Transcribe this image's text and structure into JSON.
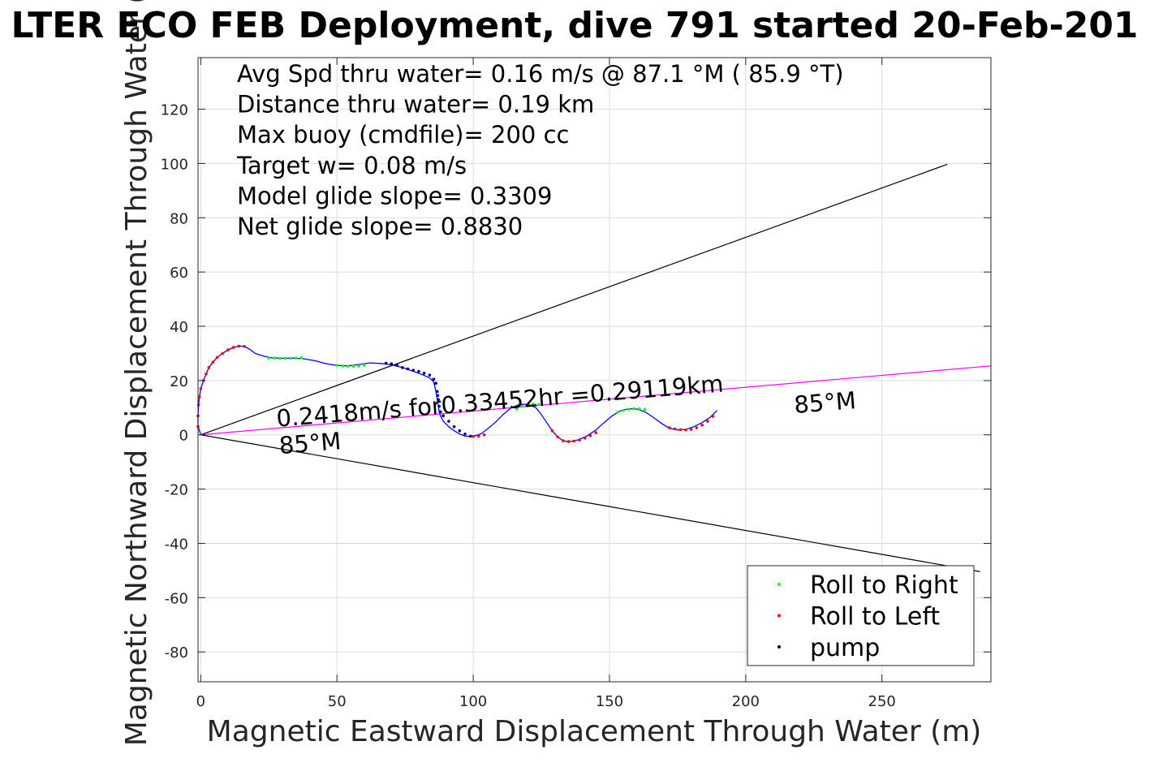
{
  "chart_data": {
    "type": "line",
    "title": "LTER ECO FEB Deployment, dive 791 started 20-Feb-201",
    "xlabel": "Magnetic Eastward Displacement Through Water (m)",
    "ylabel": "Magnetic Northward Displacement Through Water (",
    "xlim": [
      -1,
      290
    ],
    "ylim": [
      -91,
      139
    ],
    "xticks": [
      0,
      50,
      100,
      150,
      200,
      250
    ],
    "xtick_labels": [
      "0",
      "50",
      "100",
      "150",
      "200",
      "250"
    ],
    "yticks": [
      -80,
      -60,
      -40,
      -20,
      0,
      20,
      40,
      60,
      80,
      100,
      120
    ],
    "ytick_labels": [
      "-80",
      "-60",
      "-40",
      "-20",
      "0",
      "20",
      "40",
      "60",
      "80",
      "100",
      "120"
    ],
    "grid": true,
    "stats": [
      "Avg Spd thru water=  0.16 m/s @  87.1 °M ( 85.9 °T)",
      "Distance thru water=  0.19 km",
      "Max buoy (cmdfile)= 200 cc",
      "Target w= 0.08 m/s",
      "Model glide slope= 0.3309",
      "Net glide slope= 0.8830"
    ],
    "annotations": [
      {
        "text": "0.2418m/s for0.33452hr =0.29119km",
        "x": 28,
        "y": 3,
        "rotation_deg": -4.5
      },
      {
        "text": "85°M",
        "x": 29,
        "y": -7,
        "rotation_deg": -4.5
      },
      {
        "text": "85°M",
        "x": 218,
        "y": 8,
        "rotation_deg": -4.5
      }
    ],
    "legend": {
      "placement": "bottom-right",
      "entries": [
        {
          "label": "Roll to Right",
          "color": "#00ff00"
        },
        {
          "label": "Roll to Left",
          "color": "#ff0000"
        },
        {
          "label": "pump",
          "color": "#000000"
        }
      ]
    },
    "reference_lines": [
      {
        "name": "upper",
        "color": "#000000",
        "x": [
          0,
          274
        ],
        "y": [
          0,
          99.7
        ]
      },
      {
        "name": "lower",
        "color": "#000000",
        "x": [
          0,
          286
        ],
        "y": [
          0,
          -50.4
        ]
      },
      {
        "name": "heading",
        "color": "#ff00ff",
        "x": [
          0,
          290
        ],
        "y": [
          0,
          25.4
        ]
      }
    ],
    "series": [
      {
        "color": "#0000ff",
        "x": [
          0,
          -1,
          -1,
          -0.8,
          -0.5,
          0,
          1,
          2,
          3,
          4.5,
          6,
          8,
          10,
          12,
          14,
          16,
          18,
          20,
          23,
          26,
          30,
          34,
          38,
          42,
          46,
          50,
          54,
          58,
          62,
          66,
          70,
          74,
          78,
          81,
          84,
          85.5,
          86.3,
          86.8,
          87.2,
          87.5,
          88,
          89,
          91,
          93,
          95,
          97,
          99,
          101,
          103,
          105,
          108,
          111,
          114,
          117,
          120,
          123,
          125,
          127,
          129,
          131,
          133,
          135,
          137,
          139,
          142,
          145,
          148,
          151,
          154,
          157,
          160,
          163,
          166,
          169,
          172,
          175,
          178,
          181,
          184,
          187,
          189.5
        ],
        "y": [
          0,
          3,
          7,
          11,
          14,
          17,
          20,
          22.5,
          24.8,
          26.8,
          28.5,
          30,
          31.3,
          32.2,
          32.7,
          32.6,
          31.5,
          30,
          29,
          28.4,
          28.2,
          28.3,
          28,
          27.3,
          26.2,
          25.6,
          25.4,
          25.9,
          26.5,
          26.3,
          25.8,
          24.8,
          23.4,
          22.3,
          21,
          19.5,
          16,
          13,
          10.5,
          8.5,
          7,
          5,
          3,
          1.5,
          0.3,
          -0.5,
          -0.6,
          -0.3,
          0.5,
          2,
          4.5,
          7.5,
          10,
          11.2,
          11.3,
          10,
          7.5,
          4.5,
          1.5,
          -0.8,
          -2.2,
          -2.5,
          -2.3,
          -1.7,
          -0.3,
          1.8,
          4.5,
          7,
          8.8,
          9.6,
          9.5,
          8.5,
          6.5,
          4.3,
          2.4,
          1.8,
          2,
          3,
          4.5,
          6.5,
          9
        ]
      }
    ],
    "roll_right_points": {
      "x": [
        25,
        27,
        29,
        31,
        33,
        35,
        37,
        50,
        52,
        54,
        56,
        58,
        60,
        116,
        118,
        120,
        122,
        124,
        153,
        155,
        157,
        159,
        161,
        163
      ],
      "y": [
        28.3,
        28.3,
        28.2,
        28.2,
        28.2,
        28.3,
        28.4,
        25.6,
        25.4,
        25.3,
        25.3,
        25.4,
        25.7,
        9.5,
        10.5,
        11.2,
        11.4,
        11.2,
        8.3,
        9,
        9.4,
        9.6,
        9.6,
        9.4
      ]
    },
    "roll_left_points": {
      "x": [
        -1,
        -1,
        -0.8,
        -0.5,
        0,
        1,
        2,
        3,
        4.5,
        6,
        8,
        10,
        12,
        14,
        16,
        100,
        102,
        104,
        129,
        131,
        133,
        135,
        137,
        139,
        141,
        143,
        145,
        172,
        174,
        176,
        178,
        180,
        182,
        184,
        186,
        188
      ],
      "y": [
        3,
        7,
        11,
        14,
        17,
        20,
        22.5,
        24.8,
        26.8,
        28.5,
        30,
        31.3,
        32.2,
        32.7,
        32.6,
        -0.6,
        -0.5,
        0,
        1.5,
        -0.8,
        -2.2,
        -2.5,
        -2.3,
        -1.9,
        -1.2,
        -0.3,
        0.8,
        2.6,
        2.2,
        1.9,
        1.8,
        2,
        2.6,
        3.6,
        5,
        6.8
      ]
    },
    "pump_points": {
      "x": [
        68,
        70,
        72,
        74,
        76,
        78,
        80,
        82,
        84,
        85.5,
        86.3,
        86.8,
        87,
        87.2,
        87.5,
        88,
        89,
        91,
        93,
        95,
        97,
        99
      ],
      "y": [
        26.4,
        26.2,
        25.6,
        24.8,
        24.3,
        23.8,
        23.4,
        22.7,
        22,
        20.5,
        19,
        16,
        14.5,
        13,
        10.5,
        8.5,
        7,
        5,
        3,
        1.5,
        0.3,
        -0.5
      ]
    }
  }
}
